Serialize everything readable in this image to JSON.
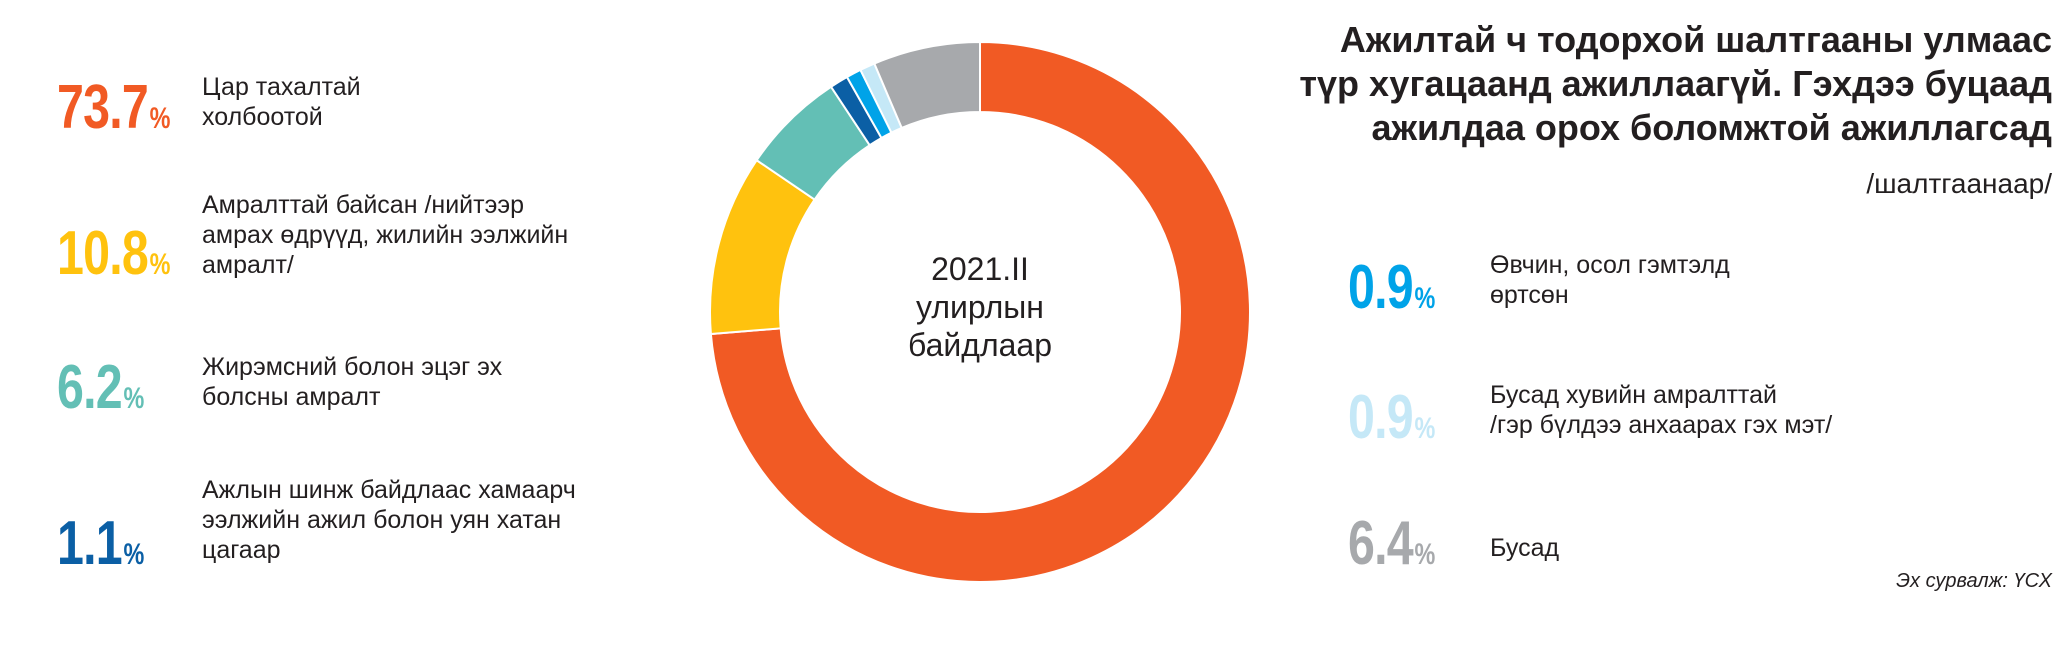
{
  "title_lines": [
    "Ажилтай ч тодорхой шалтгааны улмаас",
    "түр хугацаанд ажиллаагүй. Гэхдээ буцаад",
    "ажилдаа орох боломжтой ажиллагсад"
  ],
  "subtitle": "/шалтгаанаар/",
  "source": "Эх сурвалж: ҮСХ",
  "center_label": [
    "2021.II",
    "улирлын",
    "байдлаар"
  ],
  "percent_sign": "%",
  "chart_data": {
    "type": "pie",
    "variant": "donut",
    "start_angle_deg": 0,
    "direction": "clockwise",
    "slices": [
      {
        "value": 73.7,
        "value_text": "73.7",
        "label_lines": [
          "Цар тахалтай",
          "холбоотой"
        ],
        "color": "#F15A24"
      },
      {
        "value": 10.8,
        "value_text": "10.8",
        "label_lines": [
          "Амралттай байсан /нийтээр",
          "амрах өдрүүд, жилийн ээлжийн",
          "амралт/"
        ],
        "color": "#FFC20E"
      },
      {
        "value": 6.2,
        "value_text": "6.2",
        "label_lines": [
          "Жирэмсний болон эцэг эх",
          "болсны амралт"
        ],
        "color": "#63BFB5"
      },
      {
        "value": 1.1,
        "value_text": "1.1",
        "label_lines": [
          "Ажлын шинж байдлаас хамаарч",
          "ээлжийн ажил болон уян хатан",
          "цагаар"
        ],
        "color": "#0B5FA5"
      },
      {
        "value": 0.9,
        "value_text": "0.9",
        "label_lines": [
          "Өвчин, осол гэмтэлд",
          "өртсөн"
        ],
        "color": "#00A3E8"
      },
      {
        "value": 0.9,
        "value_text": "0.9",
        "label_lines": [
          "Бусад хувийн амралттай",
          "/гэр бүлдээ анхаарах гэх мэт/"
        ],
        "color": "#C5E8F7"
      },
      {
        "value": 6.4,
        "value_text": "6.4",
        "label_lines": [
          "Бусад"
        ],
        "color": "#A7A9AC"
      }
    ]
  }
}
